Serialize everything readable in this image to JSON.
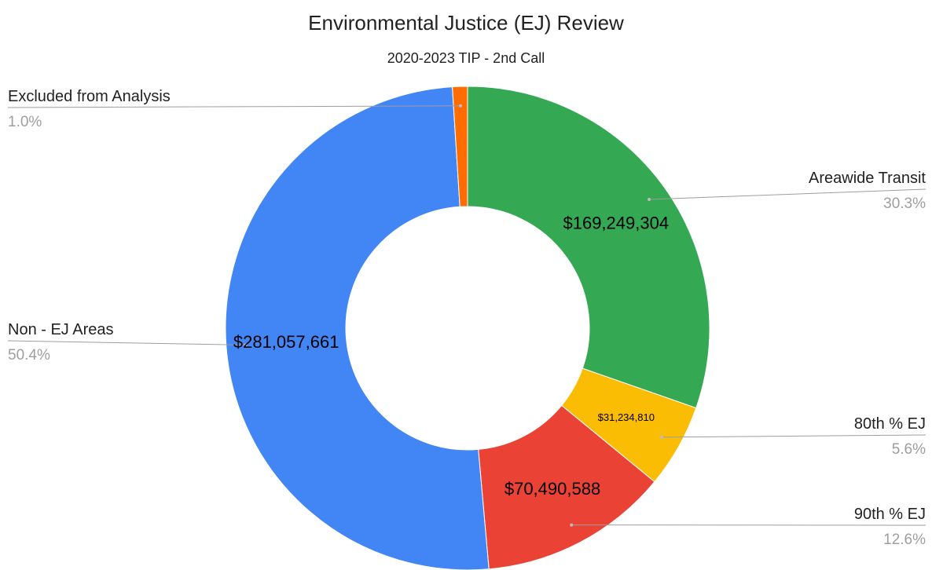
{
  "chart_data": {
    "type": "pie",
    "donut": true,
    "title": "Environmental Justice (EJ) Review",
    "subtitle": "2020-2023 TIP - 2nd Call",
    "legend": "outside-labels",
    "slices": [
      {
        "name": "Areawide Transit",
        "value": 169249304,
        "value_label": "$169,249,304",
        "percent": "30.3%",
        "color": "#34a853"
      },
      {
        "name": "80th % EJ",
        "value": 31234810,
        "value_label": "$31,234,810",
        "percent": "5.6%",
        "color": "#fbbc04"
      },
      {
        "name": "90th % EJ",
        "value": 70490588,
        "value_label": "$70,490,588",
        "percent": "12.6%",
        "color": "#ea4335"
      },
      {
        "name": "Non - EJ Areas",
        "value": 281057661,
        "value_label": "$281,057,661",
        "percent": "50.4%",
        "color": "#4285f4"
      },
      {
        "name": "Excluded from Analysis",
        "value": 5600000,
        "value_label": "",
        "percent": "1.0%",
        "color": "#ff6d01"
      }
    ]
  }
}
